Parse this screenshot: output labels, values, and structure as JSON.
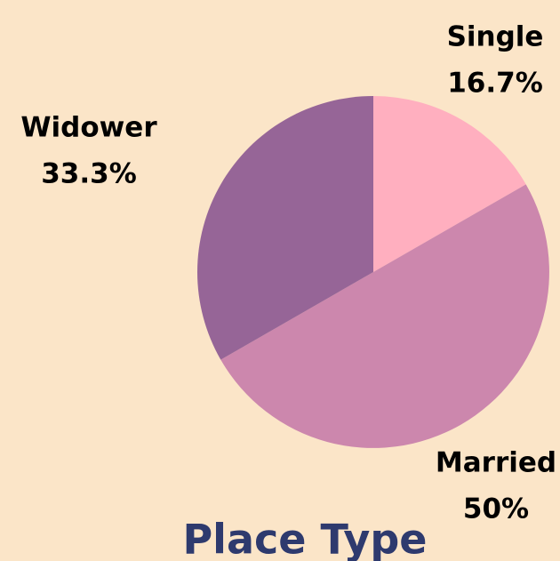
{
  "chart_data": {
    "type": "pie",
    "title": "Place Type",
    "categories": [
      "Single",
      "Married",
      "Widower"
    ],
    "values": [
      16.7,
      50,
      33.3
    ],
    "value_labels": [
      "16.7%",
      "50%",
      "33.3%"
    ],
    "colors": [
      "#ffafbf",
      "#cc87ad",
      "#966597"
    ]
  }
}
